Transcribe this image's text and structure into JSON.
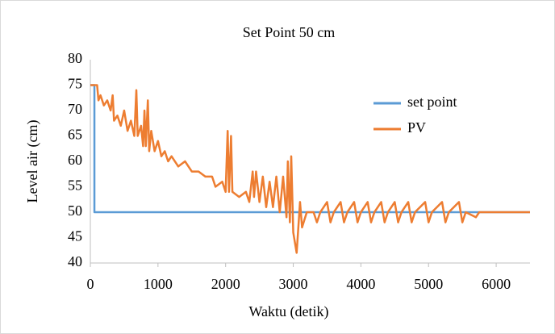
{
  "chart_data": {
    "type": "line",
    "title": "Set Point 50 cm",
    "x_label": "Waktu (detik)",
    "y_label": "Level air (cm)",
    "xlim": [
      0,
      6500
    ],
    "xticks": [
      0,
      1000,
      2000,
      3000,
      4000,
      5000,
      6000
    ],
    "ylim": [
      40,
      80
    ],
    "yticks": [
      40,
      45,
      50,
      55,
      60,
      65,
      70,
      75,
      80
    ],
    "grid": false,
    "legend": "right",
    "series": [
      {
        "name": "set point",
        "color": "#5b9bd5",
        "x": [
          0,
          60,
          60,
          6500
        ],
        "values": [
          75,
          75,
          50,
          50
        ]
      },
      {
        "name": "PV",
        "color": "#ed7d31",
        "x": [
          0,
          100,
          120,
          150,
          200,
          250,
          300,
          330,
          350,
          400,
          450,
          500,
          550,
          600,
          650,
          680,
          700,
          750,
          780,
          800,
          820,
          850,
          870,
          900,
          950,
          1000,
          1050,
          1100,
          1150,
          1200,
          1300,
          1400,
          1500,
          1600,
          1700,
          1800,
          1850,
          1950,
          2000,
          2030,
          2050,
          2080,
          2100,
          2200,
          2300,
          2350,
          2400,
          2420,
          2450,
          2500,
          2550,
          2600,
          2650,
          2700,
          2750,
          2800,
          2850,
          2900,
          2920,
          2950,
          2970,
          3000,
          3050,
          3080,
          3100,
          3130,
          3200,
          3300,
          3350,
          3400,
          3500,
          3550,
          3600,
          3700,
          3750,
          3800,
          3900,
          3950,
          4000,
          4100,
          4150,
          4200,
          4300,
          4350,
          4400,
          4500,
          4550,
          4600,
          4700,
          4750,
          4800,
          4950,
          5000,
          5050,
          5200,
          5250,
          5300,
          5450,
          5500,
          5550,
          5700,
          5750,
          6500
        ],
        "values": [
          75,
          75,
          72,
          73,
          71,
          72,
          70,
          73,
          68,
          69,
          67,
          70,
          66,
          68,
          65,
          74,
          65,
          67,
          63,
          70,
          63,
          72,
          62,
          66,
          62,
          64,
          61,
          62,
          60,
          61,
          59,
          60,
          58,
          58,
          57,
          57,
          55,
          56,
          54,
          66,
          54,
          65,
          54,
          53,
          54,
          52,
          58,
          53,
          58,
          52,
          57,
          51,
          56,
          51,
          57,
          50,
          57,
          49,
          60,
          48,
          61,
          46,
          42,
          48,
          52,
          47,
          50,
          50,
          48,
          50,
          52,
          48,
          50,
          52,
          48,
          50,
          52,
          48,
          50,
          52,
          48,
          50,
          52,
          48,
          50,
          52,
          48,
          50,
          52,
          48,
          50,
          52,
          48,
          50,
          52,
          48,
          50,
          52,
          48,
          50,
          49,
          50,
          50
        ]
      }
    ]
  }
}
